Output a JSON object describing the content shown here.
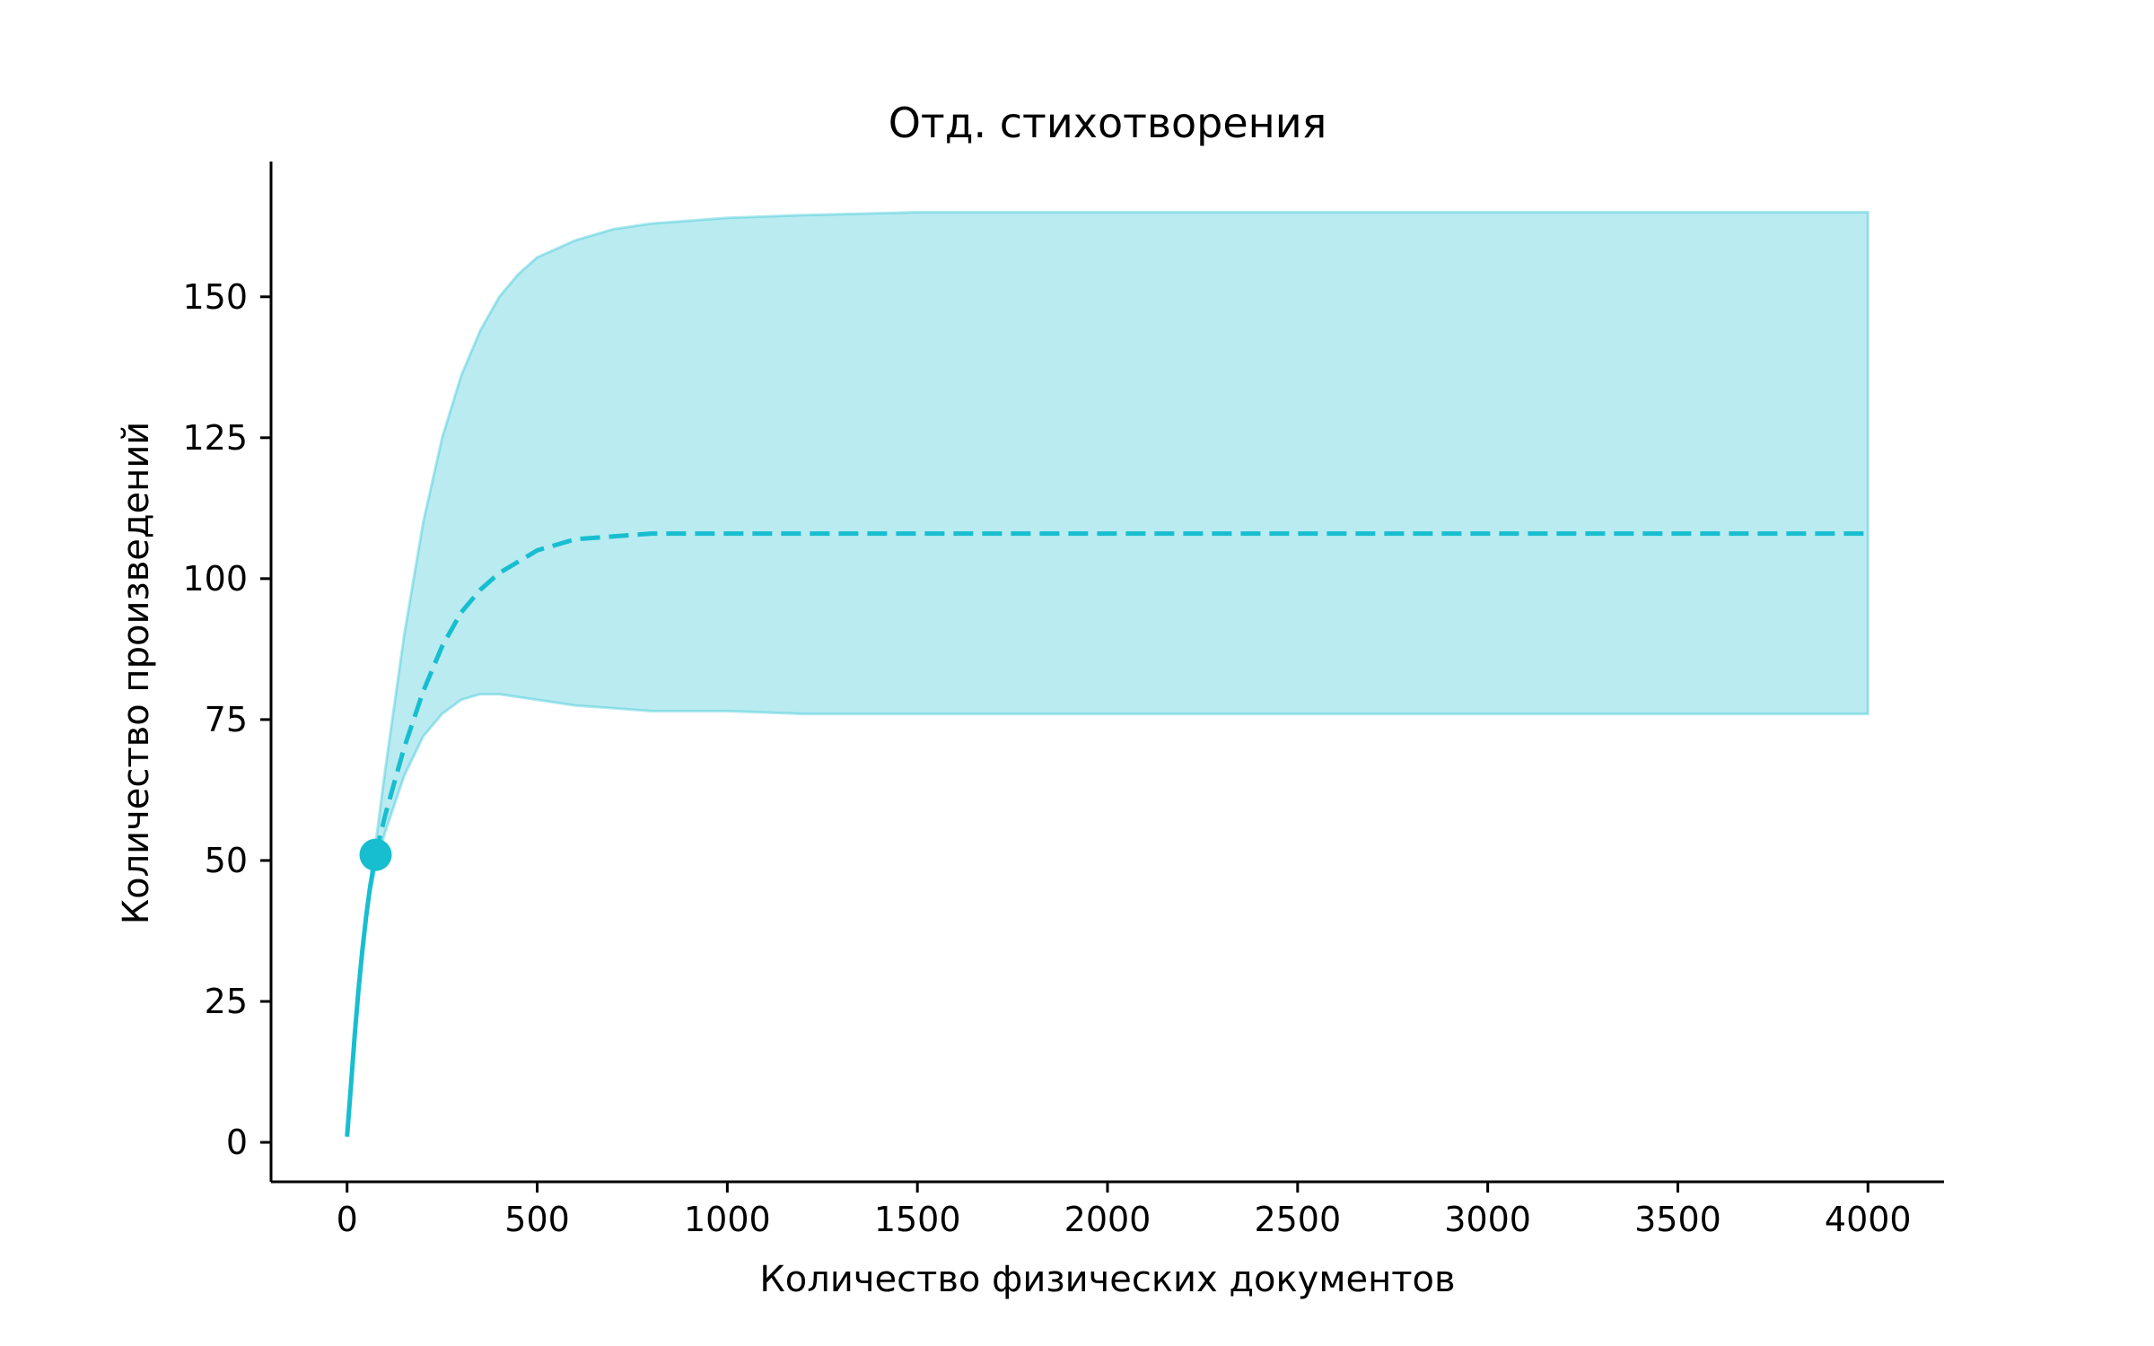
{
  "chart_data": {
    "type": "line",
    "title": "Отд. стихотворения",
    "xlabel": "Количество физических документов",
    "ylabel": "Количество произведений",
    "xlim": [
      -200,
      4200
    ],
    "ylim": [
      -7,
      174
    ],
    "xticks": [
      0,
      500,
      1000,
      1500,
      2000,
      2500,
      3000,
      3500,
      4000
    ],
    "yticks": [
      0,
      25,
      50,
      75,
      100,
      125,
      150
    ],
    "grid": false,
    "color": "#17becf",
    "observed_point": {
      "x": 75,
      "y": 51
    },
    "series": [
      {
        "style": "solid",
        "x": [
          0,
          10,
          20,
          30,
          40,
          50,
          60,
          75
        ],
        "y": [
          1,
          10,
          19,
          27,
          34,
          40,
          45,
          51
        ]
      },
      {
        "style": "dashed",
        "x": [
          75,
          100,
          150,
          200,
          250,
          300,
          350,
          400,
          500,
          600,
          800,
          1000,
          1500,
          2000,
          3000,
          4000
        ],
        "y": [
          51,
          58,
          70,
          80,
          88,
          94,
          98,
          101,
          105,
          107,
          108,
          108,
          108,
          108,
          108,
          108
        ]
      }
    ],
    "band": {
      "x": [
        0,
        10,
        20,
        30,
        40,
        50,
        60,
        75,
        100,
        150,
        200,
        250,
        300,
        350,
        400,
        450,
        500,
        600,
        700,
        800,
        1000,
        1200,
        1500,
        2000,
        3000,
        4000
      ],
      "upper": [
        1,
        10,
        19,
        27,
        34,
        40,
        46,
        53,
        66,
        90,
        110,
        125,
        136,
        144,
        150,
        154,
        157,
        160,
        162,
        163,
        164,
        164.5,
        165,
        165,
        165,
        165
      ],
      "lower": [
        1,
        10,
        19,
        27,
        34,
        40,
        44,
        49,
        55,
        65,
        72,
        76,
        78.5,
        79.5,
        79.5,
        79,
        78.5,
        77.5,
        77,
        76.5,
        76.5,
        76,
        76,
        76,
        76,
        76
      ]
    }
  }
}
